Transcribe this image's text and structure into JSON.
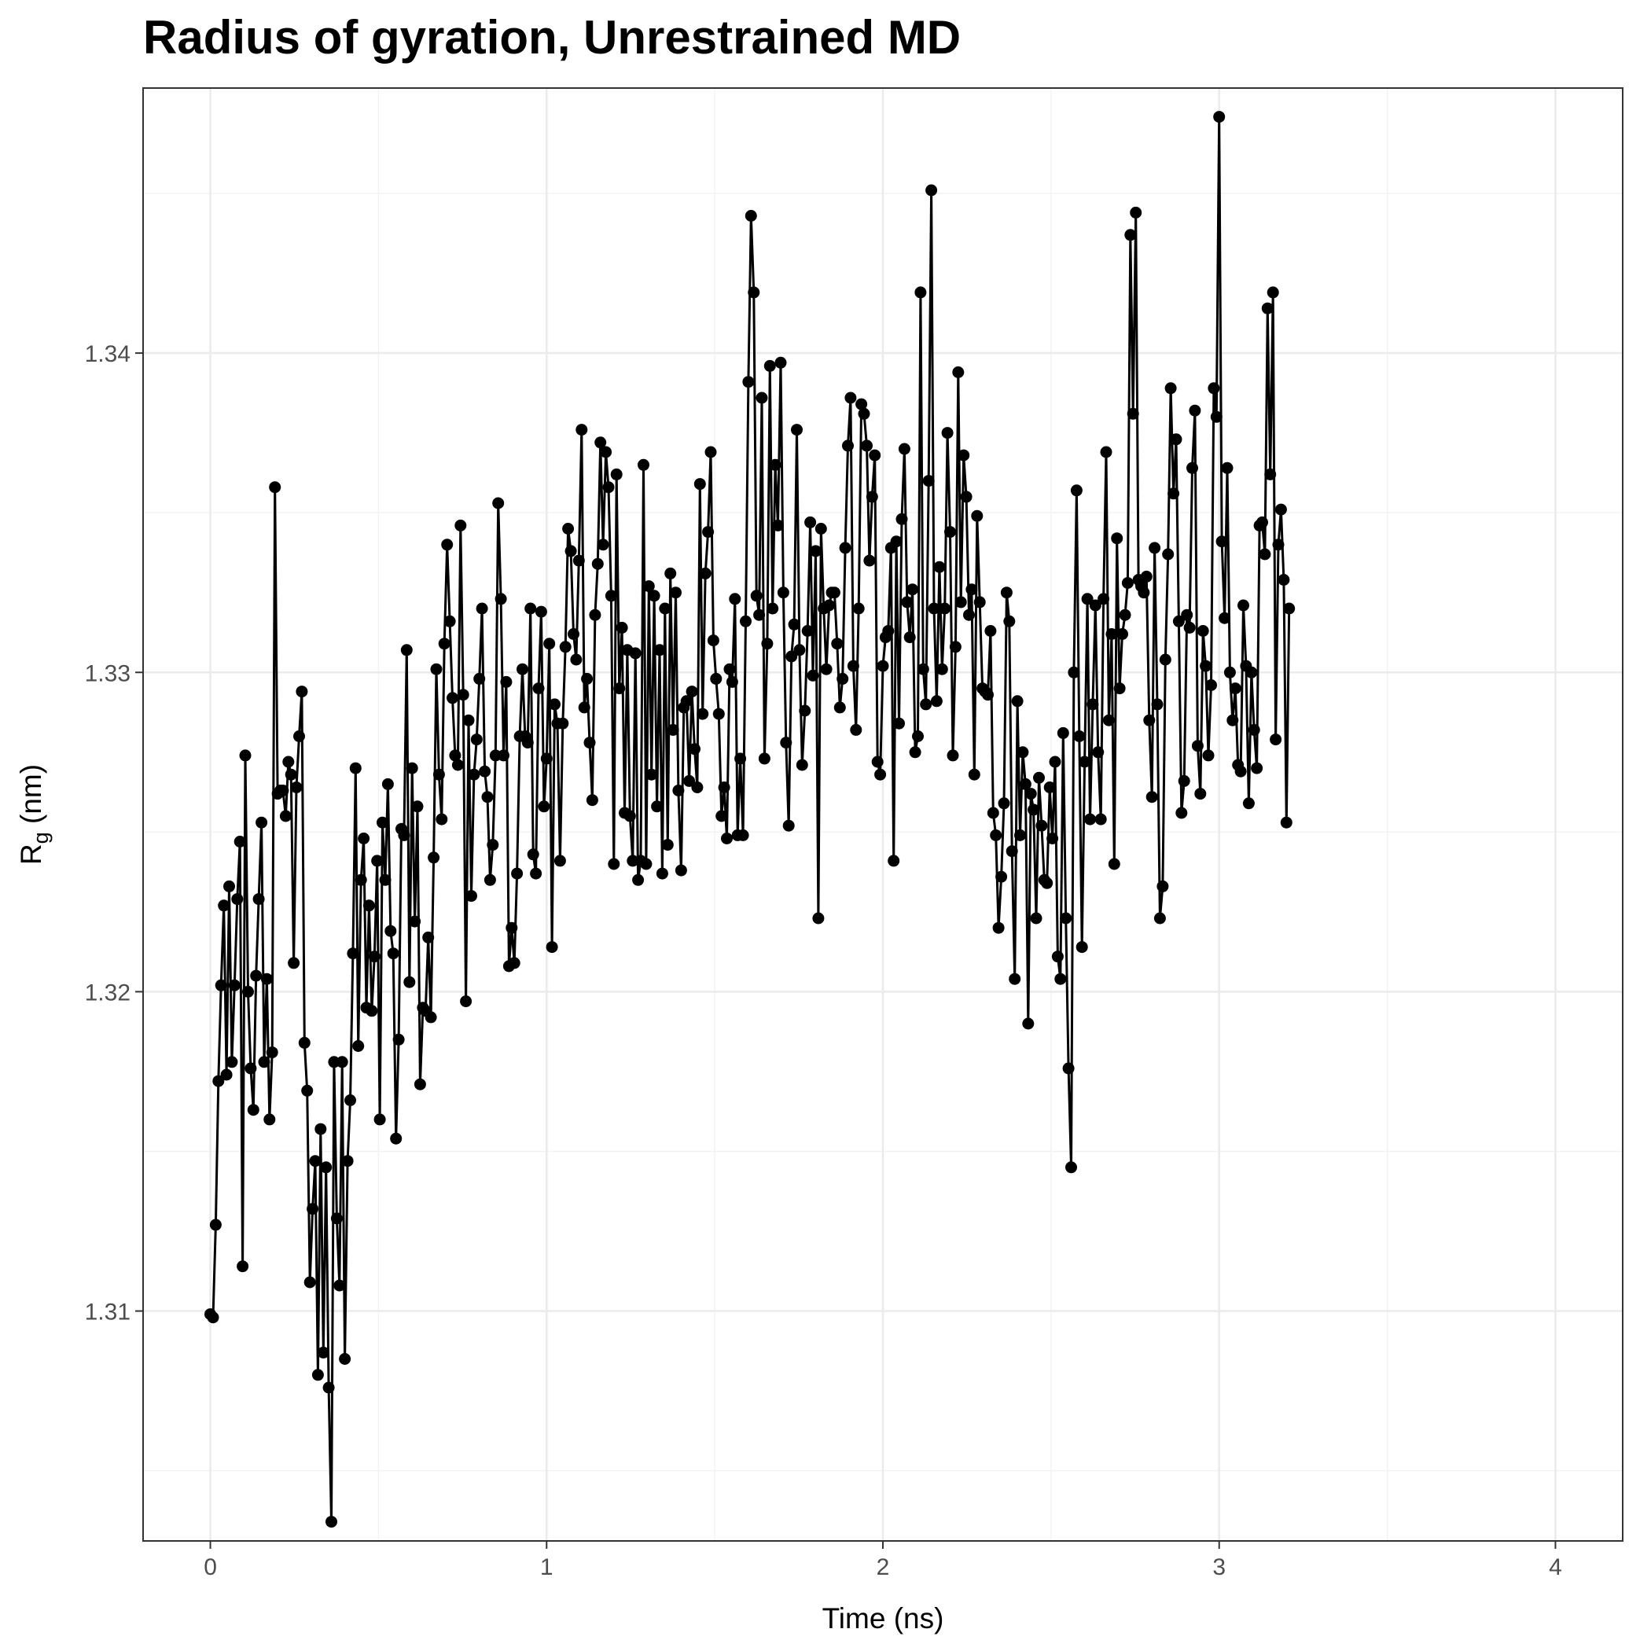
{
  "chart_data": {
    "type": "line",
    "title": "Radius of gyration, Unrestrained MD",
    "xlabel": "Time (ns)",
    "ylabel": {
      "main": "R",
      "sub": "g",
      "unit": " (nm)"
    },
    "xlim": [
      -0.2,
      4.2
    ],
    "ylim": [
      1.3028,
      1.3483
    ],
    "x_ticks": [
      0,
      1,
      2,
      3,
      4
    ],
    "y_ticks": [
      1.31,
      1.32,
      1.33,
      1.34
    ],
    "x_tick_labels": [
      "0",
      "1",
      "2",
      "3",
      "4"
    ],
    "y_tick_labels": [
      "1.31",
      "1.32",
      "1.33",
      "1.34"
    ],
    "grid": true,
    "markers": true,
    "series_color": "#000000",
    "x_step": 0.008,
    "series": [
      {
        "values": [
          1.3099,
          1.3098,
          1.3127,
          1.3172,
          1.3202,
          1.3227,
          1.3174,
          1.3233,
          1.3178,
          1.3202,
          1.3229,
          1.3247,
          1.3114,
          1.3274,
          1.32,
          1.3176,
          1.3163,
          1.3205,
          1.3229,
          1.3253,
          1.3178,
          1.3204,
          1.316,
          1.3181,
          1.3358,
          1.3262,
          1.3263,
          1.3263,
          1.3255,
          1.3272,
          1.3268,
          1.3209,
          1.3264,
          1.328,
          1.3294,
          1.3184,
          1.3169,
          1.3109,
          1.3132,
          1.3147,
          1.308,
          1.3157,
          1.3087,
          1.3145,
          1.3076,
          1.3034,
          1.3178,
          1.3129,
          1.3108,
          1.3178,
          1.3085,
          1.3147,
          1.3166,
          1.3212,
          1.327,
          1.3183,
          1.3235,
          1.3248,
          1.3195,
          1.3227,
          1.3194,
          1.3211,
          1.3241,
          1.316,
          1.3253,
          1.3235,
          1.3265,
          1.3219,
          1.3212,
          1.3154,
          1.3185,
          1.3251,
          1.3249,
          1.3307,
          1.3203,
          1.327,
          1.3222,
          1.3258,
          1.3171,
          1.3195,
          1.3194,
          1.3217,
          1.3192,
          1.3242,
          1.3301,
          1.3268,
          1.3254,
          1.3309,
          1.334,
          1.3316,
          1.3292,
          1.3274,
          1.3271,
          1.3346,
          1.3293,
          1.3197,
          1.3285,
          1.323,
          1.3268,
          1.3279,
          1.3298,
          1.332,
          1.3269,
          1.3261,
          1.3235,
          1.3246,
          1.3274,
          1.3353,
          1.3323,
          1.3274,
          1.3297,
          1.3208,
          1.322,
          1.3209,
          1.3237,
          1.328,
          1.3301,
          1.328,
          1.3278,
          1.332,
          1.3243,
          1.3237,
          1.3295,
          1.3319,
          1.3258,
          1.3273,
          1.3309,
          1.3214,
          1.329,
          1.3284,
          1.3241,
          1.3284,
          1.3308,
          1.3345,
          1.3338,
          1.3312,
          1.3304,
          1.3335,
          1.3376,
          1.3289,
          1.3298,
          1.3278,
          1.326,
          1.3318,
          1.3334,
          1.3372,
          1.334,
          1.3369,
          1.3358,
          1.3324,
          1.324,
          1.3362,
          1.3295,
          1.3314,
          1.3256,
          1.3307,
          1.3255,
          1.3241,
          1.3306,
          1.3235,
          1.3241,
          1.3365,
          1.324,
          1.3327,
          1.3268,
          1.3324,
          1.3258,
          1.3307,
          1.3237,
          1.332,
          1.3246,
          1.3331,
          1.3282,
          1.3325,
          1.3263,
          1.3238,
          1.3289,
          1.3291,
          1.3266,
          1.3294,
          1.3276,
          1.3264,
          1.3359,
          1.3287,
          1.3331,
          1.3344,
          1.3369,
          1.331,
          1.3298,
          1.3287,
          1.3255,
          1.3264,
          1.3248,
          1.3301,
          1.3297,
          1.3323,
          1.3249,
          1.3273,
          1.3249,
          1.3316,
          1.3391,
          1.3443,
          1.3419,
          1.3324,
          1.3318,
          1.3386,
          1.3273,
          1.3309,
          1.3396,
          1.332,
          1.3365,
          1.3346,
          1.3397,
          1.3325,
          1.3278,
          1.3252,
          1.3305,
          1.3315,
          1.3376,
          1.3307,
          1.3271,
          1.3288,
          1.3313,
          1.3347,
          1.3299,
          1.3338,
          1.3223,
          1.3345,
          1.332,
          1.3301,
          1.3321,
          1.3325,
          1.3325,
          1.3309,
          1.3289,
          1.3298,
          1.3339,
          1.3371,
          1.3386,
          1.3302,
          1.3282,
          1.332,
          1.3384,
          1.3381,
          1.3371,
          1.3335,
          1.3355,
          1.3368,
          1.3272,
          1.3268,
          1.3302,
          1.3311,
          1.3313,
          1.3339,
          1.3241,
          1.3341,
          1.3284,
          1.3348,
          1.337,
          1.3322,
          1.3311,
          1.3326,
          1.3275,
          1.328,
          1.3419,
          1.3301,
          1.329,
          1.336,
          1.3451,
          1.332,
          1.3291,
          1.3333,
          1.3301,
          1.332,
          1.3375,
          1.3344,
          1.3274,
          1.3308,
          1.3394,
          1.3322,
          1.3368,
          1.3355,
          1.3318,
          1.3326,
          1.3268,
          1.3349,
          1.3322,
          1.3295,
          1.3294,
          1.3293,
          1.3313,
          1.3256,
          1.3249,
          1.322,
          1.3236,
          1.3259,
          1.3325,
          1.3316,
          1.3244,
          1.3204,
          1.3291,
          1.3249,
          1.3275,
          1.3265,
          1.319,
          1.3262,
          1.3257,
          1.3223,
          1.3267,
          1.3252,
          1.3235,
          1.3234,
          1.3264,
          1.3248,
          1.3272,
          1.3211,
          1.3204,
          1.3281,
          1.3223,
          1.3176,
          1.3145,
          1.33,
          1.3357,
          1.328,
          1.3214,
          1.3272,
          1.3323,
          1.3254,
          1.329,
          1.3321,
          1.3275,
          1.3254,
          1.3323,
          1.3369,
          1.3285,
          1.3312,
          1.324,
          1.3342,
          1.3295,
          1.3312,
          1.3318,
          1.3328,
          1.3437,
          1.3381,
          1.3444,
          1.3329,
          1.3327,
          1.3325,
          1.333,
          1.3285,
          1.3261,
          1.3339,
          1.329,
          1.3223,
          1.3233,
          1.3304,
          1.3337,
          1.3389,
          1.3356,
          1.3373,
          1.3316,
          1.3256,
          1.3266,
          1.3318,
          1.3314,
          1.3364,
          1.3382,
          1.3277,
          1.3262,
          1.3313,
          1.3302,
          1.3274,
          1.3296,
          1.3389,
          1.338,
          1.3474,
          1.3341,
          1.3317,
          1.3364,
          1.33,
          1.3285,
          1.3295,
          1.3271,
          1.3269,
          1.3321,
          1.3302,
          1.3259,
          1.33,
          1.3282,
          1.327,
          1.3346,
          1.3347,
          1.3337,
          1.3414,
          1.3362,
          1.3419,
          1.3279,
          1.334,
          1.3351,
          1.3329,
          1.3253,
          1.332
        ]
      }
    ]
  }
}
